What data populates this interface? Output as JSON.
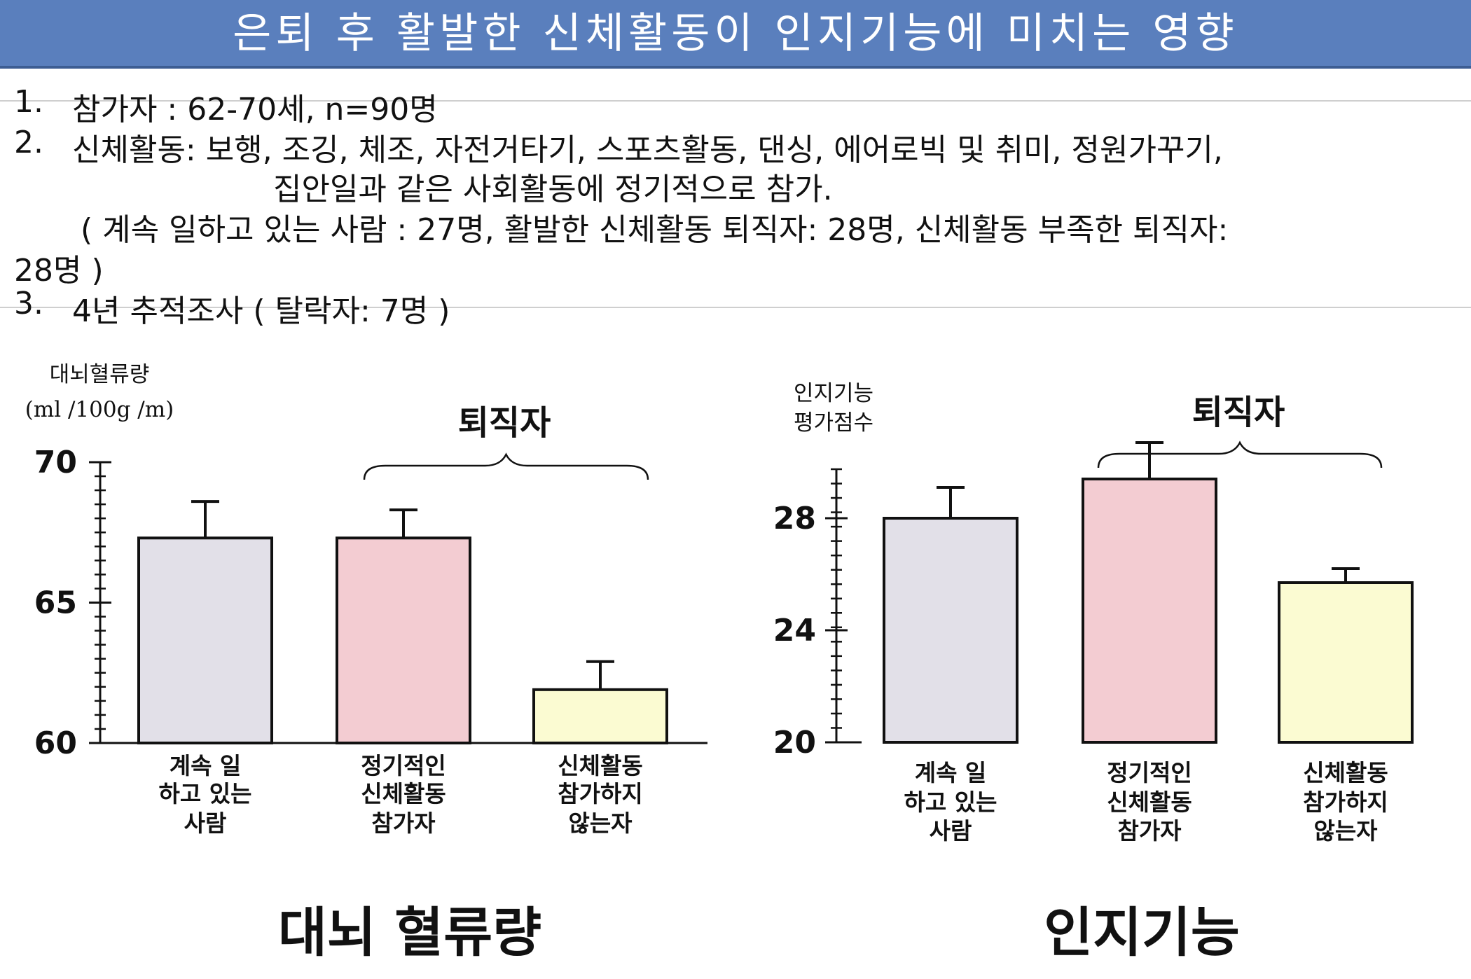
{
  "title": "은퇴 후 활발한 신체활동이 인지기능에 미치는 영향",
  "notes": {
    "line1_num": "1.",
    "line1_text": "참가자 :  62-70세, n=90명",
    "line2_num": "2.",
    "line2_text": "신체활동: 보행, 조깅, 체조, 자전거타기, 스포츠활동, 댄싱, 에어로빅 및 취미, 정원가꾸기,",
    "line2_cont": "집안일과 같은 사회활동에 정기적으로 참가.",
    "line3_text": "( 계속 일하고 있는 사람 : 27명, 활발한 신체활동 퇴직자: 28명, 신체활동 부족한 퇴직자:",
    "line4_text": "28명 )",
    "line5_num": "3.",
    "line5_text": "4년 추적조사  ( 탈락자: 7명 )"
  },
  "chart_data": [
    {
      "type": "bar",
      "caption": "대뇌 혈류량",
      "ylabel": "대뇌혈류량",
      "yunit": "(ml /100g /m)",
      "ylim": [
        60,
        70
      ],
      "yticks": [
        60,
        65,
        70
      ],
      "categories": [
        [
          "계속 일",
          "하고 있는",
          "사람"
        ],
        [
          "정기적인",
          "신체활동",
          "참가자"
        ],
        [
          "신체활동",
          "참가하지",
          "않는자"
        ]
      ],
      "values": [
        67.3,
        67.3,
        61.9
      ],
      "errors": [
        1.3,
        1.0,
        1.0
      ],
      "bar_colors": [
        "#e2e0e8",
        "#f3ccd2",
        "#fbfbd2"
      ],
      "brace_label": "퇴직자",
      "grid": false
    },
    {
      "type": "bar",
      "caption": "인지기능",
      "ylabel": "인지기능",
      "ylabel2": "평가점수",
      "ylim": [
        20,
        30
      ],
      "yticks": [
        20,
        24,
        28
      ],
      "categories": [
        [
          "계속 일",
          "하고 있는",
          "사람"
        ],
        [
          "정기적인",
          "신체활동",
          "참가자"
        ],
        [
          "신체활동",
          "참가하지",
          "않는자"
        ]
      ],
      "values": [
        28.0,
        29.4,
        25.7
      ],
      "errors": [
        1.1,
        1.3,
        0.5
      ],
      "bar_colors": [
        "#e2e0e8",
        "#f3ccd2",
        "#fbfbd2"
      ],
      "brace_label": "퇴직자",
      "grid": false
    }
  ]
}
